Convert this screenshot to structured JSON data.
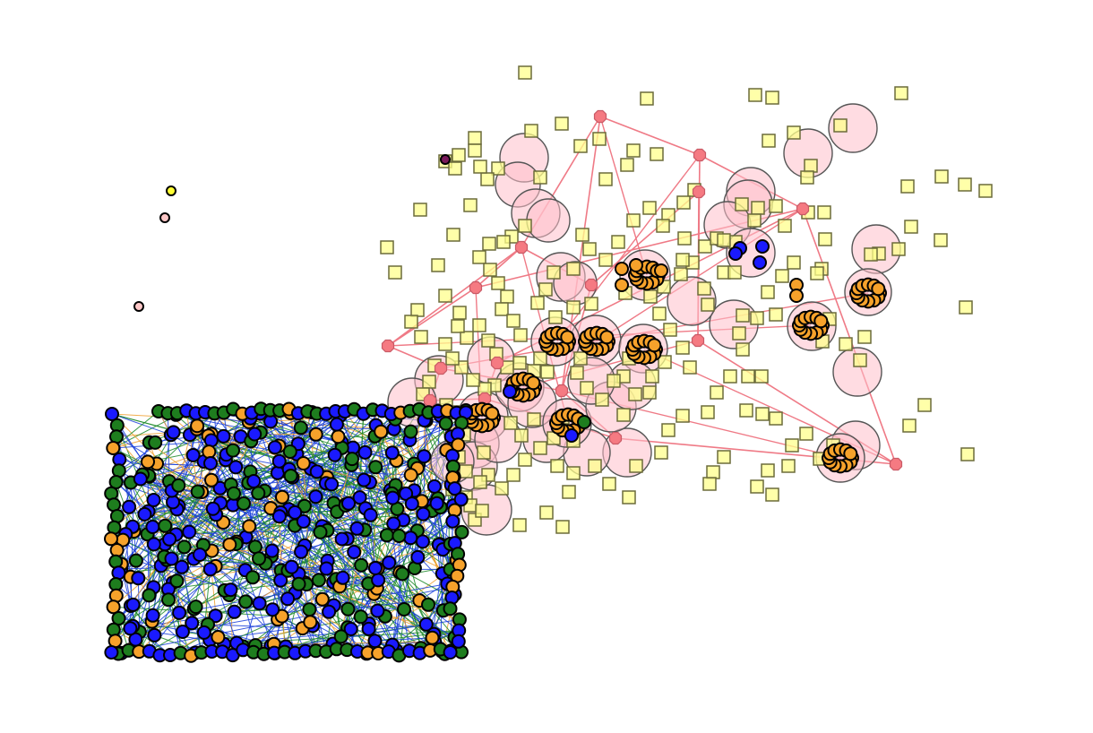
{
  "graph": {
    "colors": {
      "background": "#ffffff",
      "blue_node": "#1a1aff",
      "green_node": "#1e7d1e",
      "orange_node": "#f6a22b",
      "yellow_square": "#ffff8c",
      "pink_bubble": "#ffc0cb",
      "red_hub": "#f57a82",
      "pink_edge": "#ef7a86",
      "blue_edge": "#1a3fd9",
      "green_edge": "#1e8a2a",
      "orange_edge": "#f0a030",
      "isolated_yellow": "#ffff33",
      "isolated_pink": "#ffc8c8",
      "isolated_purple": "#7a1a5a"
    },
    "clusters": [
      {
        "name": "left-dense-component",
        "node_colors": [
          "blue",
          "green",
          "orange"
        ],
        "edge_colors": [
          "blue",
          "green",
          "orange"
        ]
      },
      {
        "name": "right-sparse-component",
        "node_shapes": [
          "square",
          "circle",
          "ring"
        ],
        "edge_colors": [
          "pink"
        ]
      }
    ],
    "isolated_nodes": [
      "yellow",
      "pink",
      "pink"
    ],
    "blue_node_group_count": 3
  }
}
